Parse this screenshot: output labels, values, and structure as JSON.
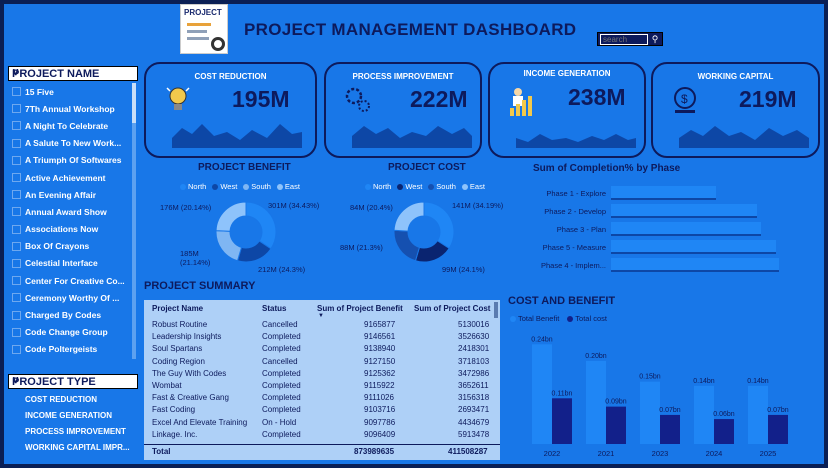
{
  "header": {
    "icon_label": "PROJECT",
    "title": "PROJECT MANAGEMENT DASHBOARD",
    "search_placeholder": "search"
  },
  "colors": {
    "accent": "#1877e8",
    "dark": "#0d1a5c",
    "light_bar": "#1f86f5",
    "dark_bar": "#12208a",
    "table_bg": "#aed0f7"
  },
  "slicer_name": {
    "title": "PROJECT NAME",
    "items": [
      "15 Five",
      "7Th Annual Workshop",
      "A Night To Celebrate",
      "A Salute To New Work...",
      "A Triumph Of Softwares",
      "Active Achievement",
      "An Evening Affair",
      "Annual Award Show",
      "Associations Now",
      "Box Of Crayons",
      "Celestial Interface",
      "Center For Creative Co...",
      "Ceremony Worthy Of ...",
      "Charged By Codes",
      "Code Change Group",
      "Code Poltergeists"
    ]
  },
  "slicer_type": {
    "title": "PROJECT TYPE",
    "items": [
      "COST REDUCTION",
      "INCOME GENERATION",
      "PROCESS IMPROVEMENT",
      "WORKING CAPITAL IMPR..."
    ]
  },
  "kpis": [
    {
      "label": "COST REDUCTION",
      "value": "195M",
      "icon": "lightbulb-icon"
    },
    {
      "label": "PROCESS IMPROVEMENT",
      "value": "222M",
      "icon": "gears-icon"
    },
    {
      "label": "INCOME GENERATION",
      "value": "238M",
      "icon": "growth-chart-icon"
    },
    {
      "label": "WORKING CAPITAL",
      "value": "219M",
      "icon": "coins-icon"
    }
  ],
  "benefit": {
    "title": "PROJECT BENEFIT",
    "legend": [
      "North",
      "West",
      "South",
      "East"
    ],
    "labels": [
      "176M (20.14%)",
      "301M (34.43%)",
      "185M (21.14%)",
      "212M (24.3%)"
    ]
  },
  "cost": {
    "title": "PROJECT COST",
    "legend": [
      "North",
      "West",
      "South",
      "East"
    ],
    "labels": [
      "84M (20.4%)",
      "141M (34.19%)",
      "88M (21.3%)",
      "99M (24.1%)"
    ]
  },
  "phase": {
    "title": "Sum of Completion% by Phase",
    "items": [
      "Phase 1 - Explore",
      "Phase 2 - Develop",
      "Phase 3 - Plan",
      "Phase 5 - Measure",
      "Phase 4 - Implem..."
    ]
  },
  "table": {
    "title": "PROJECT SUMMARY",
    "headers": [
      "Project Name",
      "Status",
      "Sum of Project Benefit",
      "Sum of Project Cost"
    ],
    "rows": [
      [
        "Robust Routine",
        "Cancelled",
        "9165877",
        "5130016"
      ],
      [
        "Leadership Insights",
        "Completed",
        "9146561",
        "3526630"
      ],
      [
        "Soul Spartans",
        "Completed",
        "9138940",
        "2418301"
      ],
      [
        "Coding Region",
        "Cancelled",
        "9127150",
        "3718103"
      ],
      [
        "The Guy With Codes",
        "Completed",
        "9125362",
        "3472986"
      ],
      [
        "Wombat",
        "Completed",
        "9115922",
        "3652611"
      ],
      [
        "Fast & Creative Gang",
        "Completed",
        "9111026",
        "3156318"
      ],
      [
        "Fast Coding",
        "Completed",
        "9103716",
        "2693471"
      ],
      [
        "Excel And Elevate Training",
        "On - Hold",
        "9097786",
        "4434679"
      ],
      [
        "Linkage. Inc.",
        "Completed",
        "9096409",
        "5913478"
      ]
    ],
    "total": [
      "Total",
      "",
      "873989635",
      "411508287"
    ]
  },
  "chart_data": [
    {
      "type": "pie",
      "title": "PROJECT BENEFIT",
      "categories": [
        "North",
        "West",
        "South",
        "East"
      ],
      "values": [
        34.43,
        20.14,
        21.14,
        24.3
      ],
      "value_labels": [
        "301M",
        "176M",
        "185M",
        "212M"
      ]
    },
    {
      "type": "pie",
      "title": "PROJECT COST",
      "categories": [
        "North",
        "West",
        "South",
        "East"
      ],
      "values": [
        34.19,
        20.4,
        21.3,
        24.1
      ],
      "value_labels": [
        "141M",
        "84M",
        "88M",
        "99M"
      ]
    },
    {
      "type": "bar",
      "title": "Sum of Completion% by Phase",
      "orientation": "horizontal",
      "categories": [
        "Phase 1 - Explore",
        "Phase 2 - Develop",
        "Phase 3 - Plan",
        "Phase 5 - Measure",
        "Phase 4 - Implem..."
      ],
      "values": [
        0.62,
        0.86,
        0.88,
        0.97,
        0.99
      ]
    },
    {
      "type": "bar",
      "title": "COST AND BENEFIT",
      "categories": [
        "2022",
        "2021",
        "2023",
        "2024",
        "2025"
      ],
      "series": [
        {
          "name": "Total Benefit",
          "values": [
            0.24,
            0.2,
            0.15,
            0.14,
            0.14
          ],
          "labels": [
            "0.24bn",
            "0.20bn",
            "0.15bn",
            "0.14bn",
            "0.14bn"
          ]
        },
        {
          "name": "Total cost",
          "values": [
            0.11,
            0.09,
            0.07,
            0.06,
            0.07
          ],
          "labels": [
            "0.11bn",
            "0.09bn",
            "0.07bn",
            "0.06bn",
            "0.07bn"
          ]
        }
      ],
      "ylim": [
        0,
        0.26
      ]
    }
  ]
}
